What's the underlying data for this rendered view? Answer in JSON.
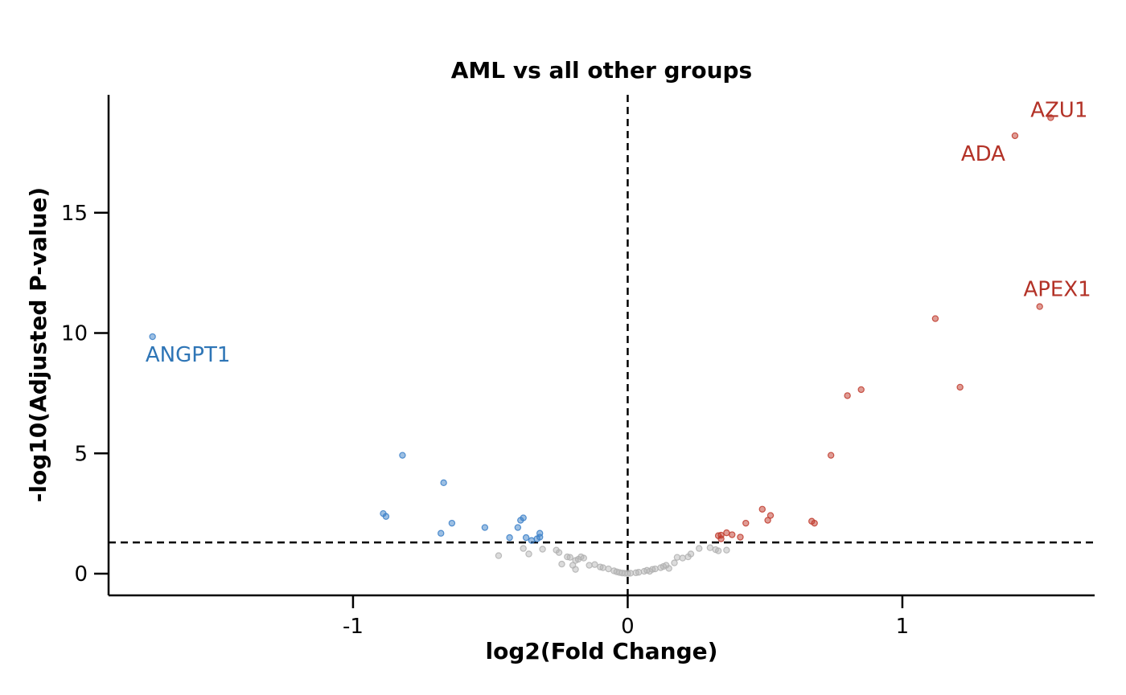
{
  "chart_data": {
    "type": "scatter",
    "title": "AML vs all other groups",
    "xlabel": "log2(Fold Change)",
    "ylabel": "-log10(Adjusted P-value)",
    "xlim": [
      -1.89,
      1.7
    ],
    "ylim": [
      -0.9,
      19.9
    ],
    "x_ticks": [
      -1,
      0,
      1
    ],
    "x_tick_labels": [
      "-1",
      "0",
      "1"
    ],
    "y_ticks": [
      0,
      5,
      10,
      15
    ],
    "y_tick_labels": [
      "0",
      "5",
      "10",
      "15"
    ],
    "thresholds": {
      "log2fc": 0,
      "neg_log10_padj": 1.3
    },
    "grid": false,
    "legend": "none",
    "colors": {
      "up": "#c0392b",
      "down": "#3a7fc8",
      "ns": "#b0b0b0",
      "up_label": "#b33227",
      "down_label": "#2e75b6",
      "guide": "#000000"
    },
    "series": [
      {
        "key": "down",
        "points": [
          {
            "x": -1.73,
            "y": 9.85,
            "label": "ANGPT1"
          },
          {
            "x": -0.82,
            "y": 4.92
          },
          {
            "x": -0.67,
            "y": 3.78
          },
          {
            "x": -0.89,
            "y": 2.5
          },
          {
            "x": -0.88,
            "y": 2.38
          },
          {
            "x": -0.64,
            "y": 2.1
          },
          {
            "x": -0.68,
            "y": 1.68
          },
          {
            "x": -0.52,
            "y": 1.92
          },
          {
            "x": -0.43,
            "y": 1.5
          },
          {
            "x": -0.4,
            "y": 1.92
          },
          {
            "x": -0.39,
            "y": 2.22
          },
          {
            "x": -0.38,
            "y": 2.32
          },
          {
            "x": -0.37,
            "y": 1.5
          },
          {
            "x": -0.35,
            "y": 1.38
          },
          {
            "x": -0.33,
            "y": 1.45
          },
          {
            "x": -0.32,
            "y": 1.68
          },
          {
            "x": -0.32,
            "y": 1.52
          }
        ]
      },
      {
        "key": "up",
        "points": [
          {
            "x": 1.54,
            "y": 18.95,
            "label": "AZU1"
          },
          {
            "x": 1.41,
            "y": 18.2,
            "label": "ADA"
          },
          {
            "x": 1.5,
            "y": 11.1,
            "label": "APEX1"
          },
          {
            "x": 1.12,
            "y": 10.6
          },
          {
            "x": 1.21,
            "y": 7.75
          },
          {
            "x": 0.85,
            "y": 7.65
          },
          {
            "x": 0.8,
            "y": 7.4
          },
          {
            "x": 0.74,
            "y": 4.92
          },
          {
            "x": 0.67,
            "y": 2.18
          },
          {
            "x": 0.68,
            "y": 2.1
          },
          {
            "x": 0.49,
            "y": 2.68
          },
          {
            "x": 0.52,
            "y": 2.42
          },
          {
            "x": 0.51,
            "y": 2.22
          },
          {
            "x": 0.43,
            "y": 2.1
          },
          {
            "x": 0.38,
            "y": 1.62
          },
          {
            "x": 0.36,
            "y": 1.7
          },
          {
            "x": 0.34,
            "y": 1.6
          },
          {
            "x": 0.33,
            "y": 1.58
          },
          {
            "x": 0.41,
            "y": 1.52
          },
          {
            "x": 0.34,
            "y": 1.45
          }
        ]
      },
      {
        "key": "ns",
        "points": [
          {
            "x": -0.47,
            "y": 0.75
          },
          {
            "x": -0.38,
            "y": 1.05
          },
          {
            "x": -0.36,
            "y": 0.82
          },
          {
            "x": -0.31,
            "y": 1.02
          },
          {
            "x": -0.26,
            "y": 0.98
          },
          {
            "x": -0.25,
            "y": 0.88
          },
          {
            "x": -0.24,
            "y": 0.4
          },
          {
            "x": -0.22,
            "y": 0.7
          },
          {
            "x": -0.21,
            "y": 0.68
          },
          {
            "x": -0.2,
            "y": 0.35
          },
          {
            "x": -0.19,
            "y": 0.55
          },
          {
            "x": -0.19,
            "y": 0.18
          },
          {
            "x": -0.18,
            "y": 0.6
          },
          {
            "x": -0.17,
            "y": 0.7
          },
          {
            "x": -0.16,
            "y": 0.65
          },
          {
            "x": -0.14,
            "y": 0.35
          },
          {
            "x": -0.12,
            "y": 0.38
          },
          {
            "x": -0.1,
            "y": 0.28
          },
          {
            "x": -0.09,
            "y": 0.25
          },
          {
            "x": -0.07,
            "y": 0.2
          },
          {
            "x": -0.05,
            "y": 0.12
          },
          {
            "x": -0.04,
            "y": 0.08
          },
          {
            "x": -0.03,
            "y": 0.05
          },
          {
            "x": -0.02,
            "y": 0.03
          },
          {
            "x": -0.01,
            "y": 0.02
          },
          {
            "x": 0.0,
            "y": 0.01
          },
          {
            "x": 0.01,
            "y": 0.02
          },
          {
            "x": 0.03,
            "y": 0.04
          },
          {
            "x": 0.04,
            "y": 0.06
          },
          {
            "x": 0.06,
            "y": 0.1
          },
          {
            "x": 0.07,
            "y": 0.14
          },
          {
            "x": 0.08,
            "y": 0.1
          },
          {
            "x": 0.09,
            "y": 0.18
          },
          {
            "x": 0.1,
            "y": 0.2
          },
          {
            "x": 0.12,
            "y": 0.25
          },
          {
            "x": 0.13,
            "y": 0.3
          },
          {
            "x": 0.14,
            "y": 0.35
          },
          {
            "x": 0.15,
            "y": 0.22
          },
          {
            "x": 0.17,
            "y": 0.45
          },
          {
            "x": 0.18,
            "y": 0.68
          },
          {
            "x": 0.2,
            "y": 0.65
          },
          {
            "x": 0.22,
            "y": 0.7
          },
          {
            "x": 0.23,
            "y": 0.82
          },
          {
            "x": 0.26,
            "y": 1.05
          },
          {
            "x": 0.3,
            "y": 1.08
          },
          {
            "x": 0.32,
            "y": 1.0
          },
          {
            "x": 0.33,
            "y": 0.95
          },
          {
            "x": 0.36,
            "y": 0.98
          }
        ]
      }
    ]
  }
}
